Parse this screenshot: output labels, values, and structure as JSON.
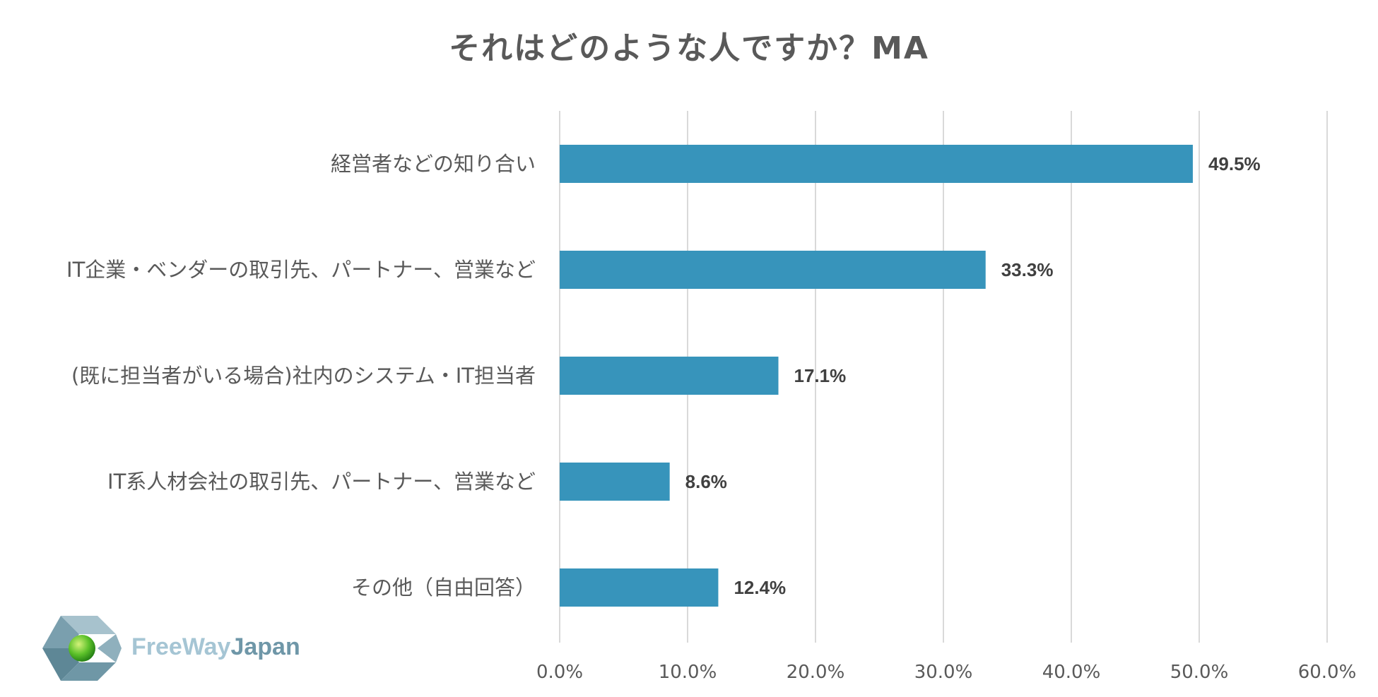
{
  "chart_data": {
    "type": "bar",
    "orientation": "horizontal",
    "title": "それはどのような人ですか？MA",
    "categories": [
      "経営者などの知り合い",
      "IT企業・ベンダーの取引先、パートナー、営業など",
      "(既に担当者がいる場合)社内のシステム・IT担当者",
      "IT系人材会社の取引先、パートナー、営業など",
      "その他（自由回答）"
    ],
    "values": [
      49.5,
      33.3,
      17.1,
      8.6,
      12.4
    ],
    "value_labels": [
      "49.5%",
      "33.3%",
      "17.1%",
      "8.6%",
      "12.4%"
    ],
    "xlim": [
      0,
      60
    ],
    "x_ticks": [
      "0.0%",
      "10.0%",
      "20.0%",
      "30.0%",
      "40.0%",
      "50.0%",
      "60.0%"
    ],
    "grid": "vertical",
    "bar_color": "#3794BB",
    "xlabel": "",
    "ylabel": ""
  },
  "logo": {
    "text_part1": "FreeWay",
    "text_part2": "Japan",
    "color1": "#A5C5D4",
    "color2": "#6F97A8"
  }
}
